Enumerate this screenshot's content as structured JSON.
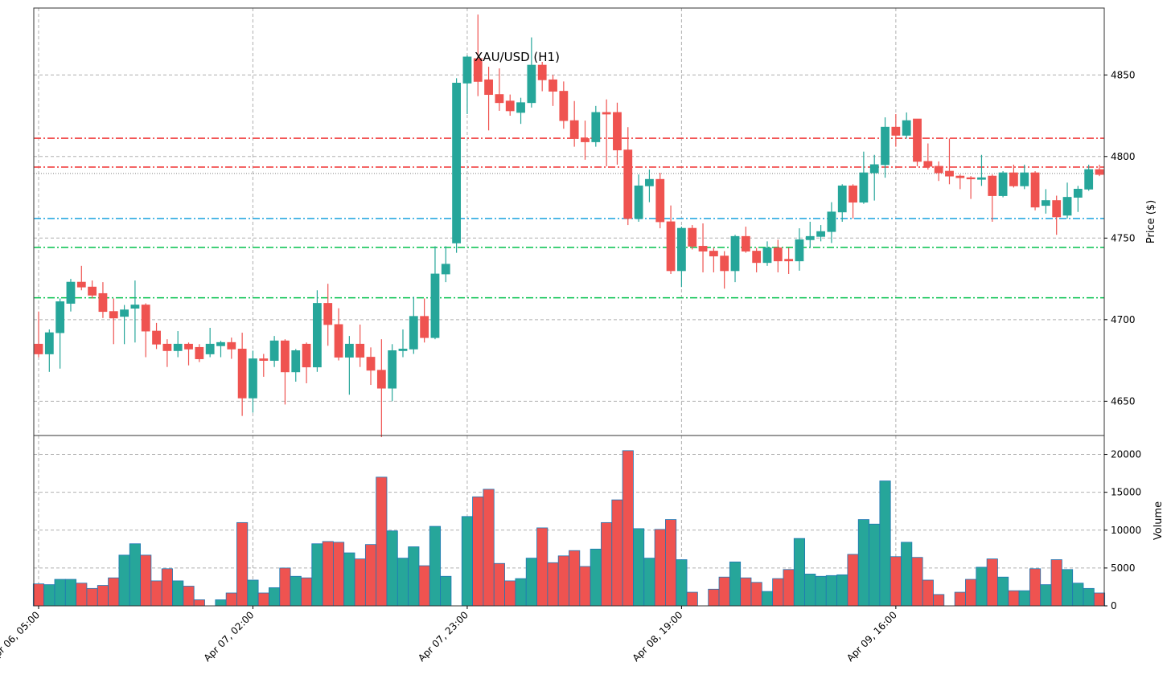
{
  "chart_data": {
    "type": "candlestick",
    "title": "XAU/USD (H1)",
    "ylabel": "Price ($)",
    "volume_ylabel": "Volume",
    "grid": true,
    "price_ylim": [
      4629,
      4891
    ],
    "volume_ylim": [
      0,
      22500
    ],
    "price_ticks": [
      4650,
      4700,
      4750,
      4800,
      4850
    ],
    "volume_ticks": [
      0,
      5000,
      10000,
      15000,
      20000
    ],
    "x_ticks": [
      {
        "index": 0,
        "label": "Apr 06, 05:00"
      },
      {
        "index": 20,
        "label": "Apr 07, 02:00"
      },
      {
        "index": 40,
        "label": "Apr 07, 23:00"
      },
      {
        "index": 60,
        "label": "Apr 08, 19:00"
      },
      {
        "index": 80,
        "label": "Apr 09, 16:00"
      }
    ],
    "colors": {
      "up": "#26a69a",
      "down": "#ef5350",
      "volume_edge": "#1f77b4"
    },
    "hlines": [
      {
        "price": 4811.2,
        "color": "#f03c3c",
        "style": "dashdot"
      },
      {
        "price": 4793.5,
        "color": "#f03c3c",
        "style": "dashdot"
      },
      {
        "price": 4789.6,
        "color": "#808080",
        "style": "dotted"
      },
      {
        "price": 4762.0,
        "color": "#29a9e0",
        "style": "dashdot"
      },
      {
        "price": 4744.3,
        "color": "#00c04b",
        "style": "dashdot"
      },
      {
        "price": 4713.4,
        "color": "#00c04b",
        "style": "dashdot"
      }
    ],
    "ohlc_fields": [
      "open",
      "high",
      "low",
      "close"
    ],
    "ohlc": [
      [
        4685,
        4705,
        4677,
        4679
      ],
      [
        4679,
        4694,
        4668,
        4692
      ],
      [
        4692,
        4713,
        4670,
        4711
      ],
      [
        4710,
        4725,
        4705,
        4723
      ],
      [
        4723,
        4733,
        4718,
        4720
      ],
      [
        4720,
        4724,
        4713,
        4715
      ],
      [
        4716,
        4723,
        4701,
        4705
      ],
      [
        4705,
        4713,
        4685,
        4701
      ],
      [
        4702,
        4709,
        4685,
        4706
      ],
      [
        4707,
        4724,
        4686,
        4709
      ],
      [
        4709,
        4710,
        4677,
        4693
      ],
      [
        4693,
        4698,
        4682,
        4685
      ],
      [
        4685,
        4688,
        4671,
        4681
      ],
      [
        4681,
        4693,
        4677,
        4685
      ],
      [
        4685,
        4686,
        4672,
        4682
      ],
      [
        4683,
        4685,
        4674,
        4676
      ],
      [
        4679,
        4695,
        4677,
        4685
      ],
      [
        4684,
        4687,
        4677,
        4686
      ],
      [
        4686,
        4689,
        4676,
        4682
      ],
      [
        4682,
        4692,
        4641,
        4652
      ],
      [
        4652,
        4681,
        4643,
        4676
      ],
      [
        4676,
        4679,
        4665,
        4675
      ],
      [
        4675,
        4690,
        4671,
        4687
      ],
      [
        4687,
        4688,
        4648,
        4668
      ],
      [
        4668,
        4682,
        4662,
        4681
      ],
      [
        4685,
        4686,
        4661,
        4671
      ],
      [
        4671,
        4718,
        4668,
        4710
      ],
      [
        4710,
        4722,
        4684,
        4697
      ],
      [
        4697,
        4707,
        4675,
        4677
      ],
      [
        4677,
        4690,
        4654,
        4685
      ],
      [
        4685,
        4697,
        4671,
        4677
      ],
      [
        4677,
        4683,
        4660,
        4669
      ],
      [
        4669,
        4688,
        4628,
        4658
      ],
      [
        4658,
        4685,
        4650,
        4681
      ],
      [
        4681,
        4694,
        4677,
        4682
      ],
      [
        4682,
        4714,
        4679,
        4702
      ],
      [
        4702,
        4713,
        4686,
        4689
      ],
      [
        4689,
        4745,
        4688,
        4728
      ],
      [
        4728,
        4745,
        4723,
        4734
      ],
      [
        4747,
        4848,
        4741,
        4845
      ],
      [
        4845,
        4862,
        4826,
        4861
      ],
      [
        4860,
        4887,
        4837,
        4846
      ],
      [
        4847,
        4855,
        4816,
        4838
      ],
      [
        4838,
        4854,
        4828,
        4833
      ],
      [
        4834,
        4838,
        4825,
        4828
      ],
      [
        4827,
        4836,
        4820,
        4833
      ],
      [
        4833,
        4873,
        4830,
        4856
      ],
      [
        4856,
        4858,
        4840,
        4847
      ],
      [
        4847,
        4850,
        4831,
        4840
      ],
      [
        4840,
        4846,
        4817,
        4822
      ],
      [
        4822,
        4834,
        4806,
        4811
      ],
      [
        4811,
        4822,
        4798,
        4809
      ],
      [
        4809,
        4831,
        4806,
        4827
      ],
      [
        4827,
        4835,
        4794,
        4826
      ],
      [
        4827,
        4833,
        4795,
        4804
      ],
      [
        4804,
        4818,
        4758,
        4762
      ],
      [
        4762,
        4789,
        4760,
        4782
      ],
      [
        4782,
        4792,
        4772,
        4786
      ],
      [
        4786,
        4790,
        4756,
        4760
      ],
      [
        4760,
        4770,
        4728,
        4730
      ],
      [
        4730,
        4757,
        4720,
        4756
      ],
      [
        4756,
        4758,
        4743,
        4745
      ],
      [
        4745,
        4759,
        4729,
        4742
      ],
      [
        4742,
        4744,
        4729,
        4739
      ],
      [
        4739,
        4742,
        4719,
        4730
      ],
      [
        4730,
        4752,
        4723,
        4751
      ],
      [
        4751,
        4757,
        4741,
        4742
      ],
      [
        4742,
        4744,
        4729,
        4735
      ],
      [
        4735,
        4748,
        4733,
        4744
      ],
      [
        4744,
        4749,
        4729,
        4736
      ],
      [
        4737,
        4744,
        4728,
        4736
      ],
      [
        4736,
        4756,
        4730,
        4749
      ],
      [
        4749,
        4760,
        4744,
        4751
      ],
      [
        4751,
        4758,
        4748,
        4754
      ],
      [
        4754,
        4772,
        4747,
        4766
      ],
      [
        4766,
        4783,
        4760,
        4782
      ],
      [
        4782,
        4783,
        4762,
        4772
      ],
      [
        4772,
        4803,
        4771,
        4790
      ],
      [
        4790,
        4801,
        4773,
        4795
      ],
      [
        4795,
        4824,
        4787,
        4818
      ],
      [
        4818,
        4826,
        4806,
        4813
      ],
      [
        4813,
        4827,
        4811,
        4822
      ],
      [
        4823,
        4823,
        4794,
        4797
      ],
      [
        4797,
        4808,
        4792,
        4794
      ],
      [
        4794,
        4797,
        4785,
        4790
      ],
      [
        4791,
        4811,
        4783,
        4788
      ],
      [
        4788,
        4789,
        4780,
        4787
      ],
      [
        4787,
        4788,
        4774,
        4786.5
      ],
      [
        4786,
        4801,
        4782,
        4787
      ],
      [
        4788,
        4789,
        4760,
        4776
      ],
      [
        4776,
        4791,
        4775,
        4790
      ],
      [
        4790,
        4795,
        4781,
        4782
      ],
      [
        4782,
        4795,
        4780,
        4790
      ],
      [
        4790,
        4791,
        4767,
        4769
      ],
      [
        4770,
        4780,
        4765,
        4773
      ],
      [
        4773,
        4776,
        4752,
        4763
      ],
      [
        4764,
        4784,
        4762,
        4775
      ],
      [
        4775,
        4782,
        4766,
        4780
      ],
      [
        4780,
        4795,
        4779,
        4792
      ],
      [
        4792,
        4795,
        4788,
        4789
      ]
    ],
    "volume": [
      2900,
      2800,
      3500,
      3500,
      3000,
      2300,
      2700,
      3700,
      6700,
      8200,
      6700,
      3300,
      4900,
      3300,
      2600,
      800,
      0,
      800,
      1700,
      11000,
      3400,
      1700,
      2400,
      5000,
      3900,
      3700,
      8200,
      8500,
      8400,
      7000,
      6200,
      8100,
      17000,
      9900,
      6300,
      7800,
      5300,
      10500,
      3900,
      0,
      11800,
      14400,
      15400,
      5600,
      3300,
      3600,
      6300,
      10300,
      5700,
      6600,
      7300,
      5200,
      7500,
      11000,
      14000,
      20500,
      10200,
      6300,
      10100,
      11400,
      6100,
      1800,
      0,
      2200,
      3800,
      5800,
      3700,
      3100,
      1900,
      3600,
      4800,
      8900,
      4200,
      3900,
      4000,
      4100,
      6800,
      11400,
      10800,
      16500,
      6500,
      8400,
      6400,
      3400,
      1500,
      0,
      1800,
      3500,
      5100,
      6200,
      3800,
      2000,
      2000,
      4900,
      2800,
      6100,
      4800,
      3000,
      2300,
      1700
    ]
  }
}
